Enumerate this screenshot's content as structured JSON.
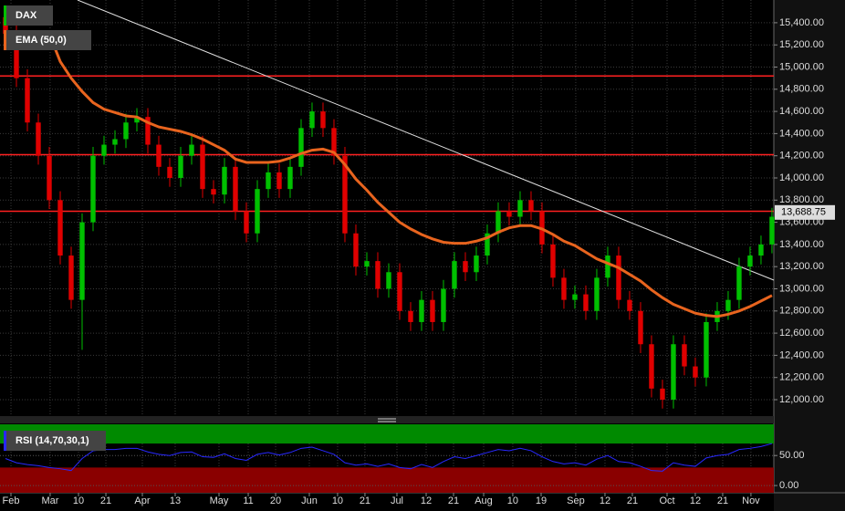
{
  "chart_data": {
    "type": "candlestick",
    "symbol": "DAX",
    "indicator": "EMA (50,0)",
    "xlim": [
      -0.5,
      70.17
    ],
    "ylim": [
      11860,
      15605
    ],
    "yticks": [
      {
        "value": 12000,
        "label": "12,000.00"
      },
      {
        "value": 12200,
        "label": "12,200.00"
      },
      {
        "value": 12400,
        "label": "12,400.00"
      },
      {
        "value": 12600,
        "label": "12,600.00"
      },
      {
        "value": 12800,
        "label": "12,800.00"
      },
      {
        "value": 13000,
        "label": "13,000.00"
      },
      {
        "value": 13200,
        "label": "13,200.00"
      },
      {
        "value": 13400,
        "label": "13,400.00"
      },
      {
        "value": 13600,
        "label": "13,600.00"
      },
      {
        "value": 13800,
        "label": "13,800.00"
      },
      {
        "value": 14000,
        "label": "14,000.00"
      },
      {
        "value": 14200,
        "label": "14,200.00"
      },
      {
        "value": 14400,
        "label": "14,400.00"
      },
      {
        "value": 14600,
        "label": "14,600.00"
      },
      {
        "value": 14800,
        "label": "14,800.00"
      },
      {
        "value": 15000,
        "label": "15,000.00"
      },
      {
        "value": 15200,
        "label": "15,200.00"
      },
      {
        "value": 15400,
        "label": "15,400.00"
      }
    ],
    "xticks": [
      {
        "value": 0.5,
        "label": "Feb"
      },
      {
        "value": 4.08,
        "label": "Mar"
      },
      {
        "value": 6.67,
        "label": "10"
      },
      {
        "value": 9.17,
        "label": "21"
      },
      {
        "value": 12.5,
        "label": "Apr"
      },
      {
        "value": 15.5,
        "label": "13"
      },
      {
        "value": 19.5,
        "label": "May"
      },
      {
        "value": 22.17,
        "label": "11"
      },
      {
        "value": 24.67,
        "label": "20"
      },
      {
        "value": 27.75,
        "label": "Jun"
      },
      {
        "value": 30.33,
        "label": "10"
      },
      {
        "value": 32.83,
        "label": "21"
      },
      {
        "value": 35.75,
        "label": "Jul"
      },
      {
        "value": 38.42,
        "label": "12"
      },
      {
        "value": 40.92,
        "label": "21"
      },
      {
        "value": 43.67,
        "label": "Aug"
      },
      {
        "value": 46.33,
        "label": "10"
      },
      {
        "value": 48.92,
        "label": "19"
      },
      {
        "value": 52.08,
        "label": "Sep"
      },
      {
        "value": 54.75,
        "label": "12"
      },
      {
        "value": 57.25,
        "label": "21"
      },
      {
        "value": 60.42,
        "label": "Oct"
      },
      {
        "value": 63,
        "label": "12"
      },
      {
        "value": 65.5,
        "label": "21"
      },
      {
        "value": 68.08,
        "label": "Nov"
      }
    ],
    "grid": true,
    "up_color": "#00c000",
    "down_color": "#e00000",
    "open": [
      15450,
      15300,
      14900,
      14500,
      14200,
      13800,
      13300,
      12900,
      13600,
      14200,
      14300,
      14350,
      14500,
      14550,
      14300,
      14100,
      14000,
      14200,
      14300,
      13900,
      13850,
      14100,
      13700,
      13500,
      13900,
      14050,
      13900,
      14100,
      14450,
      14600,
      14450,
      14200,
      13500,
      13200,
      13250,
      13000,
      13150,
      12800,
      12700,
      12900,
      12700,
      13000,
      13250,
      13150,
      13300,
      13500,
      13700,
      13650,
      13800,
      13700,
      13400,
      13100,
      12900,
      12950,
      12800,
      13100,
      13300,
      12900,
      12800,
      12500,
      12100,
      12000,
      12500,
      12300,
      12200,
      12700,
      12800,
      12900,
      13200,
      13300,
      13400
    ],
    "high": [
      15530,
      15380,
      14980,
      14580,
      14280,
      13880,
      13380,
      13680,
      14280,
      14380,
      14430,
      14580,
      14630,
      14630,
      14380,
      14180,
      14280,
      14380,
      14380,
      13980,
      14180,
      14180,
      13780,
      13980,
      14130,
      14130,
      14180,
      14530,
      14680,
      14680,
      14530,
      14280,
      13580,
      13330,
      13330,
      13230,
      13230,
      12880,
      12980,
      12980,
      13080,
      13330,
      13330,
      13380,
      13580,
      13780,
      13780,
      13880,
      13880,
      13780,
      13480,
      13180,
      13030,
      13030,
      13180,
      13380,
      13380,
      12980,
      12880,
      12580,
      12180,
      12580,
      12580,
      12380,
      12780,
      12880,
      12980,
      13280,
      13380,
      13480,
      13730
    ],
    "low": [
      15220,
      14820,
      14420,
      14120,
      13720,
      13220,
      12820,
      12450,
      13520,
      14120,
      14220,
      14270,
      14420,
      14220,
      14020,
      13920,
      13920,
      14120,
      13820,
      13770,
      13770,
      13620,
      13420,
      13420,
      13820,
      13820,
      13820,
      14020,
      14370,
      14370,
      14120,
      13420,
      13120,
      13120,
      12920,
      12920,
      12720,
      12620,
      12620,
      12620,
      12620,
      12920,
      13070,
      13070,
      13220,
      13420,
      13570,
      13570,
      13620,
      13320,
      13020,
      12820,
      12820,
      12720,
      12720,
      13020,
      12820,
      12720,
      12420,
      12020,
      11920,
      11920,
      12220,
      12120,
      12120,
      12620,
      12720,
      12820,
      13120,
      13220,
      13320
    ],
    "close": [
      15300,
      14900,
      14500,
      14200,
      13800,
      13300,
      12900,
      13600,
      14200,
      14300,
      14350,
      14500,
      14550,
      14300,
      14100,
      14000,
      14200,
      14300,
      13900,
      13850,
      14100,
      13700,
      13500,
      13900,
      14050,
      13900,
      14100,
      14450,
      14600,
      14450,
      14200,
      13500,
      13200,
      13250,
      13000,
      13150,
      12800,
      12700,
      12900,
      12700,
      13000,
      13250,
      13150,
      13300,
      13500,
      13700,
      13650,
      13800,
      13700,
      13400,
      13100,
      12900,
      12950,
      12800,
      13100,
      13300,
      12900,
      12800,
      12500,
      12100,
      12000,
      12500,
      12300,
      12200,
      12700,
      12800,
      12900,
      13200,
      13300,
      13400,
      13650
    ],
    "ema": {
      "color": "#e8641e",
      "values": [
        null,
        null,
        null,
        null,
        15300,
        15050,
        14900,
        14780,
        14680,
        14620,
        14590,
        14560,
        14550,
        14500,
        14460,
        14440,
        14420,
        14390,
        14350,
        14300,
        14250,
        14170,
        14140,
        14140,
        14140,
        14150,
        14180,
        14220,
        14250,
        14260,
        14230,
        14120,
        13990,
        13890,
        13780,
        13690,
        13600,
        13540,
        13490,
        13450,
        13420,
        13410,
        13410,
        13430,
        13460,
        13510,
        13550,
        13570,
        13570,
        13540,
        13490,
        13430,
        13390,
        13330,
        13270,
        13230,
        13190,
        13130,
        13070,
        12990,
        12920,
        12860,
        12820,
        12780,
        12760,
        12750,
        12770,
        12800,
        12840,
        12890,
        12940
      ]
    },
    "hlines": {
      "color": "#ff2020",
      "values": [
        14920,
        14210,
        13700
      ]
    },
    "trendline": {
      "color": "#e0e0e0",
      "x": [
        6.58,
        70.17
      ],
      "y": [
        15605,
        13078
      ]
    },
    "last_price": {
      "value": 13688.75,
      "label": "13,688.75"
    },
    "rsi": {
      "name": "RSI (14,70,30,1)",
      "color": "#2828ff",
      "ylim": [
        -12,
        102
      ],
      "yticks": [
        {
          "value": 50,
          "label": "50.00"
        },
        {
          "value": 0,
          "label": "0.00"
        }
      ],
      "overbought": 70,
      "oversold": 30,
      "values": [
        45,
        38,
        35,
        33,
        30,
        28,
        25,
        45,
        58,
        60,
        60,
        62,
        62,
        56,
        52,
        50,
        55,
        56,
        48,
        47,
        53,
        45,
        42,
        52,
        55,
        51,
        55,
        62,
        64,
        58,
        52,
        38,
        34,
        36,
        32,
        36,
        30,
        28,
        35,
        30,
        40,
        48,
        45,
        50,
        55,
        60,
        58,
        62,
        58,
        48,
        40,
        36,
        38,
        34,
        44,
        50,
        40,
        38,
        32,
        25,
        24,
        38,
        34,
        32,
        46,
        50,
        52,
        60,
        62,
        65,
        70
      ]
    }
  }
}
